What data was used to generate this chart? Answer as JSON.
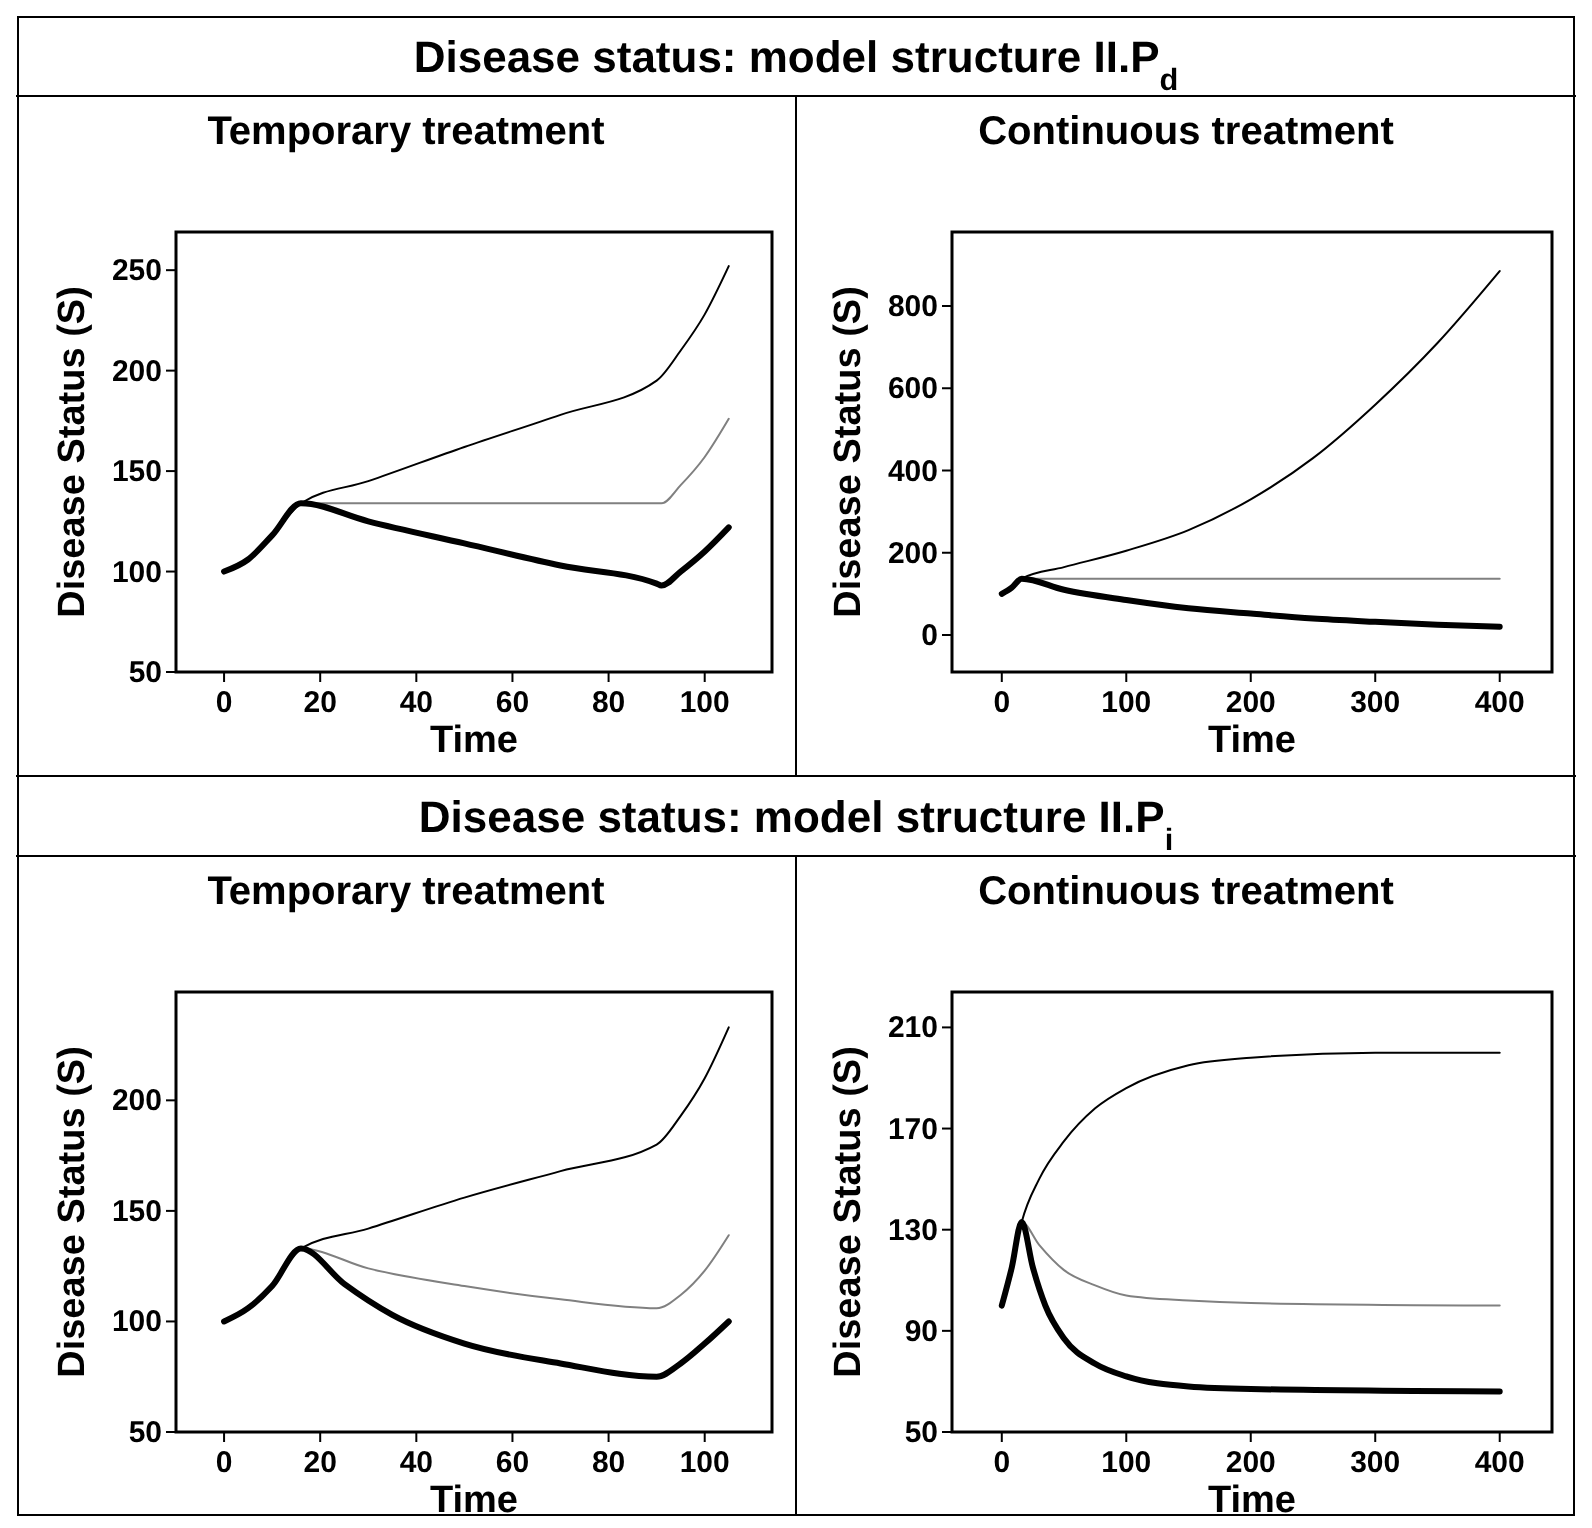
{
  "chart_data": [
    {
      "type": "line",
      "title": "Disease status: model structure II.P$_{d}$",
      "subtitle": "Temporary treatment",
      "xlabel": "Time",
      "ylabel": "Disease Status (S)",
      "xlim": [
        -10,
        114
      ],
      "ylim": [
        50,
        269
      ],
      "xticks": [
        0,
        20,
        40,
        60,
        80,
        100
      ],
      "yticks": [
        50,
        100,
        150,
        200,
        250
      ],
      "series": [
        {
          "color": "#000000",
          "x": [
            0,
            5,
            10,
            16,
            30,
            50,
            70,
            90,
            95,
            100,
            105
          ],
          "values": [
            100,
            106,
            118,
            134,
            145,
            162,
            178,
            195,
            210,
            228,
            252
          ]
        },
        {
          "color": "#808080",
          "x": [
            0,
            5,
            10,
            16,
            30,
            50,
            70,
            91,
            95,
            100,
            105
          ],
          "values": [
            100,
            106,
            118,
            134,
            134,
            134,
            134,
            134,
            143,
            157,
            176
          ]
        },
        {
          "color": "#000000",
          "x": [
            0,
            5,
            10,
            16,
            30,
            50,
            70,
            90,
            91,
            95,
            100,
            105
          ],
          "values": [
            100,
            106,
            118,
            134,
            125,
            114,
            103,
            94,
            93,
            100,
            110,
            122
          ]
        }
      ]
    },
    {
      "type": "line",
      "subtitle": "Continuous treatment",
      "xlabel": "Time",
      "ylabel": "Disease Status (S)",
      "xlim": [
        -40,
        442
      ],
      "ylim": [
        -90,
        980
      ],
      "xticks": [
        0,
        100,
        200,
        300,
        400
      ],
      "yticks": [
        0,
        200,
        400,
        600,
        800
      ],
      "series": [
        {
          "color": "#000000",
          "x": [
            0,
            8,
            16,
            50,
            100,
            150,
            200,
            250,
            300,
            350,
            400
          ],
          "values": [
            100,
            115,
            137,
            165,
            205,
            255,
            330,
            430,
            560,
            710,
            885
          ]
        },
        {
          "color": "#808080",
          "x": [
            0,
            8,
            16,
            100,
            200,
            300,
            400
          ],
          "values": [
            100,
            115,
            137,
            137,
            137,
            137,
            137
          ]
        },
        {
          "color": "#000000",
          "x": [
            0,
            8,
            16,
            50,
            100,
            150,
            200,
            250,
            300,
            350,
            400
          ],
          "values": [
            100,
            115,
            137,
            110,
            85,
            65,
            52,
            40,
            32,
            25,
            20
          ]
        }
      ]
    },
    {
      "type": "line",
      "title": "Disease status: model structure II.P$_{i}$",
      "subtitle": "Temporary treatment",
      "xlabel": "Time",
      "ylabel": "Disease Status (S)",
      "xlim": [
        -10,
        114
      ],
      "ylim": [
        50,
        249
      ],
      "xticks": [
        0,
        20,
        40,
        60,
        80,
        100
      ],
      "yticks": [
        50,
        100,
        150,
        200
      ],
      "series": [
        {
          "color": "#000000",
          "x": [
            0,
            5,
            10,
            16,
            30,
            50,
            70,
            90,
            95,
            100,
            105
          ],
          "values": [
            100,
            106,
            116,
            133,
            142,
            156,
            168,
            180,
            193,
            210,
            233
          ]
        },
        {
          "color": "#808080",
          "x": [
            0,
            5,
            10,
            16,
            30,
            50,
            70,
            90,
            95,
            100,
            105
          ],
          "values": [
            100,
            106,
            116,
            133,
            124,
            116,
            110,
            106,
            112,
            123,
            139
          ]
        },
        {
          "color": "#000000",
          "x": [
            0,
            5,
            10,
            16,
            25,
            35,
            50,
            70,
            90,
            95,
            100,
            105
          ],
          "values": [
            100,
            106,
            116,
            133,
            117,
            103,
            90,
            81,
            75,
            81,
            90,
            100
          ]
        }
      ]
    },
    {
      "type": "line",
      "subtitle": "Continuous treatment",
      "xlabel": "Time",
      "ylabel": "Disease Status (S)",
      "xlim": [
        -40,
        442
      ],
      "ylim": [
        50,
        224
      ],
      "xticks": [
        0,
        100,
        200,
        300,
        400
      ],
      "yticks": [
        50,
        90,
        130,
        170,
        210
      ],
      "series": [
        {
          "color": "#000000",
          "x": [
            0,
            8,
            16,
            30,
            50,
            75,
            100,
            150,
            200,
            300,
            400
          ],
          "values": [
            100,
            115,
            133,
            150,
            165,
            178,
            186,
            195,
            198,
            200,
            200
          ]
        },
        {
          "color": "#808080",
          "x": [
            0,
            8,
            16,
            30,
            50,
            75,
            100,
            150,
            200,
            400
          ],
          "values": [
            100,
            115,
            133,
            124,
            114,
            108,
            104,
            102,
            101,
            100
          ]
        },
        {
          "color": "#000000",
          "x": [
            0,
            8,
            16,
            25,
            35,
            50,
            75,
            100,
            150,
            200,
            400
          ],
          "values": [
            100,
            115,
            133,
            115,
            100,
            87,
            77,
            72,
            68,
            67,
            66
          ]
        }
      ]
    }
  ]
}
